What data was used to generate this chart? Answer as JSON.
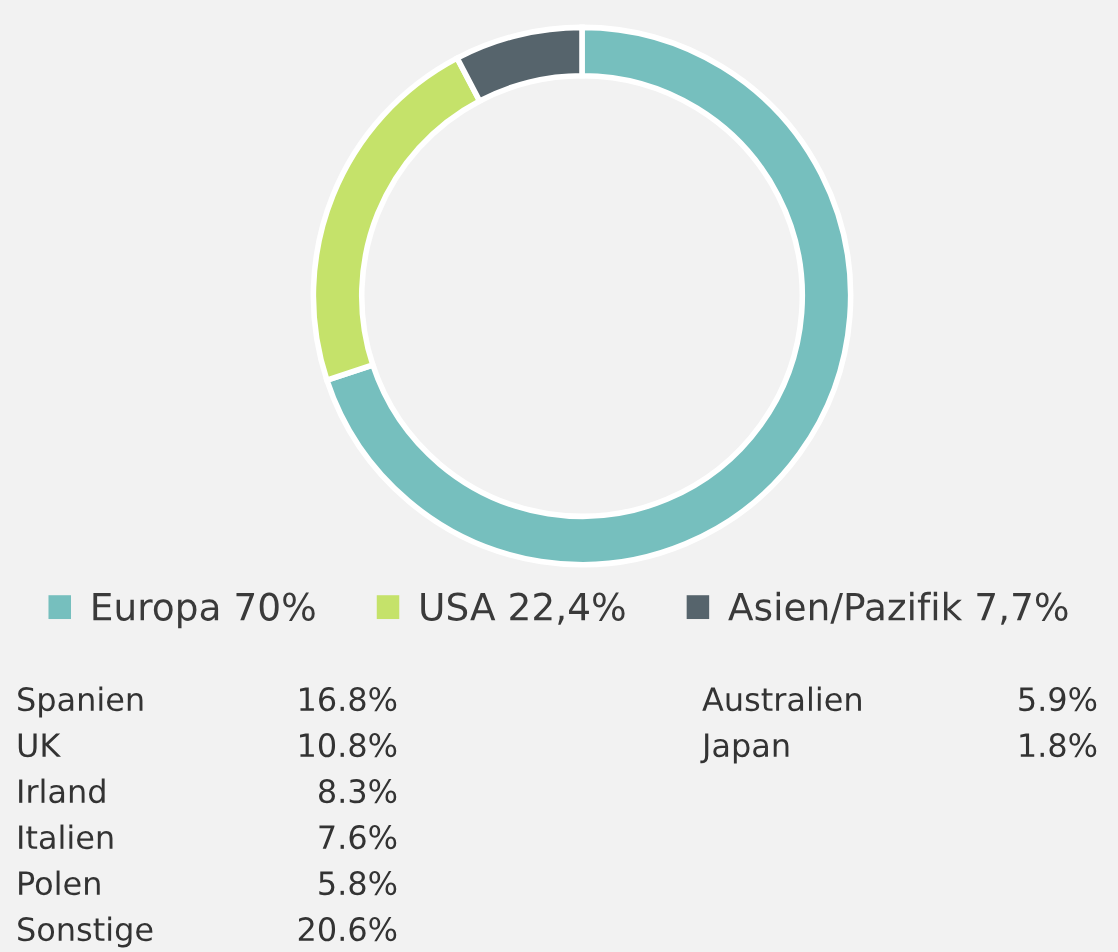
{
  "chart_data": {
    "type": "donut",
    "categories": [
      "Europa",
      "USA",
      "Asien/Pazifik"
    ],
    "values": [
      70,
      22.4,
      7.7
    ],
    "value_labels": [
      "70%",
      "22,4%",
      "7,7%"
    ],
    "colors": [
      "#76bfbe",
      "#c5e26a",
      "#56646c"
    ],
    "legend": "bottom",
    "annotations": [
      "Spanien",
      "16.8%",
      "UK",
      "10.8%",
      "Irland",
      "8.3%",
      "Italien",
      "7.6%",
      "Polen",
      "5.8%",
      "Sonstige",
      "20.6%",
      "Australien",
      "5.9%",
      "Japan",
      "1.8%"
    ]
  }
}
